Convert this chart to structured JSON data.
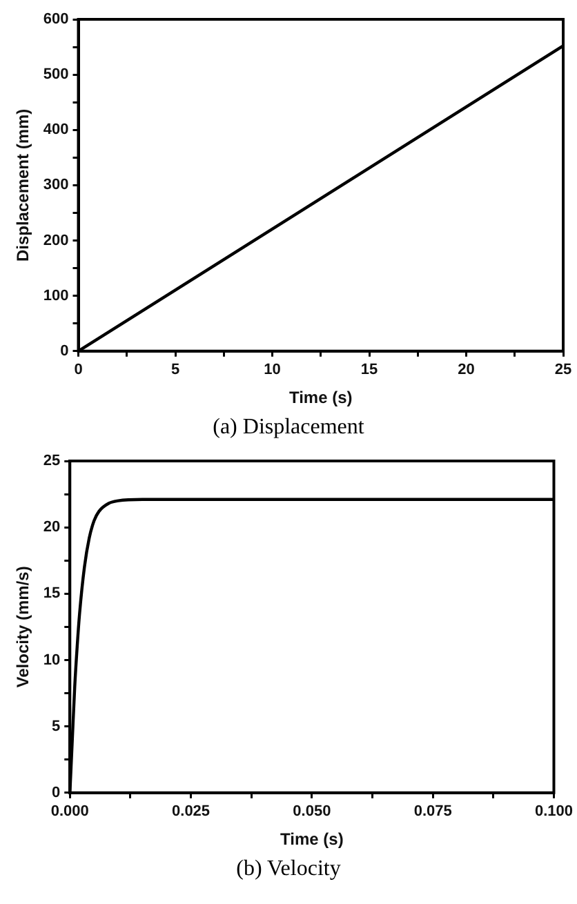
{
  "chart_data": [
    {
      "type": "line",
      "xlabel": "Time (s)",
      "ylabel": "Displacement (mm)",
      "annotations": [
        "(a) Displacement"
      ],
      "series": [
        {
          "color": "#000000",
          "x": [
            0,
            25
          ],
          "values": [
            0,
            552
          ]
        }
      ],
      "xlim": [
        0,
        25
      ],
      "xticks": [
        0,
        {
          "value": 2.5,
          "label": null
        },
        5,
        {
          "value": 7.5,
          "label": null
        },
        10,
        {
          "value": 12.5,
          "label": null
        },
        15,
        {
          "value": 17.5,
          "label": null
        },
        20,
        {
          "value": 22.5,
          "label": null
        },
        25
      ],
      "ylim": [
        0,
        600
      ],
      "yticks": [
        0,
        {
          "value": 50,
          "label": null
        },
        100,
        {
          "value": 150,
          "label": null
        },
        200,
        {
          "value": 250,
          "label": null
        },
        300,
        {
          "value": 350,
          "label": null
        },
        400,
        {
          "value": 450,
          "label": null
        },
        500,
        {
          "value": 550,
          "label": null
        },
        600
      ],
      "grid": false,
      "legend": false,
      "marker": "none",
      "line_style": "solid"
    },
    {
      "type": "line",
      "xlabel": "Time (s)",
      "ylabel": "Velocity (mm/s)",
      "annotations": [
        "(b) Velocity"
      ],
      "series": [
        {
          "color": "#000000",
          "x": [
            0,
            0.0005,
            0.001,
            0.0015,
            0.002,
            0.003,
            0.004,
            0.005,
            0.006,
            0.008,
            0.01,
            0.015,
            0.02,
            0.1
          ],
          "values": [
            0,
            4,
            8,
            11,
            13.5,
            17,
            19.2,
            20.5,
            21.2,
            21.8,
            22,
            22.1,
            22.1,
            22.1
          ]
        }
      ],
      "xlim": [
        0,
        0.1
      ],
      "xticks": [
        {
          "value": 0,
          "label": "0.000"
        },
        {
          "value": 0.0125,
          "label": null
        },
        0.025,
        {
          "value": 0.0375,
          "label": null
        },
        {
          "value": 0.05,
          "label": "0.050"
        },
        {
          "value": 0.0625,
          "label": null
        },
        0.075,
        {
          "value": 0.0875,
          "label": null
        },
        {
          "value": 0.1,
          "label": "0.100"
        }
      ],
      "ylim": [
        0,
        25
      ],
      "yticks": [
        0,
        {
          "value": 2.5,
          "label": null
        },
        5,
        {
          "value": 7.5,
          "label": null
        },
        10,
        {
          "value": 12.5,
          "label": null
        },
        15,
        {
          "value": 17.5,
          "label": null
        },
        20,
        {
          "value": 22.5,
          "label": null
        },
        25
      ],
      "grid": false,
      "legend": false,
      "marker": "none",
      "line_style": "solid"
    }
  ]
}
